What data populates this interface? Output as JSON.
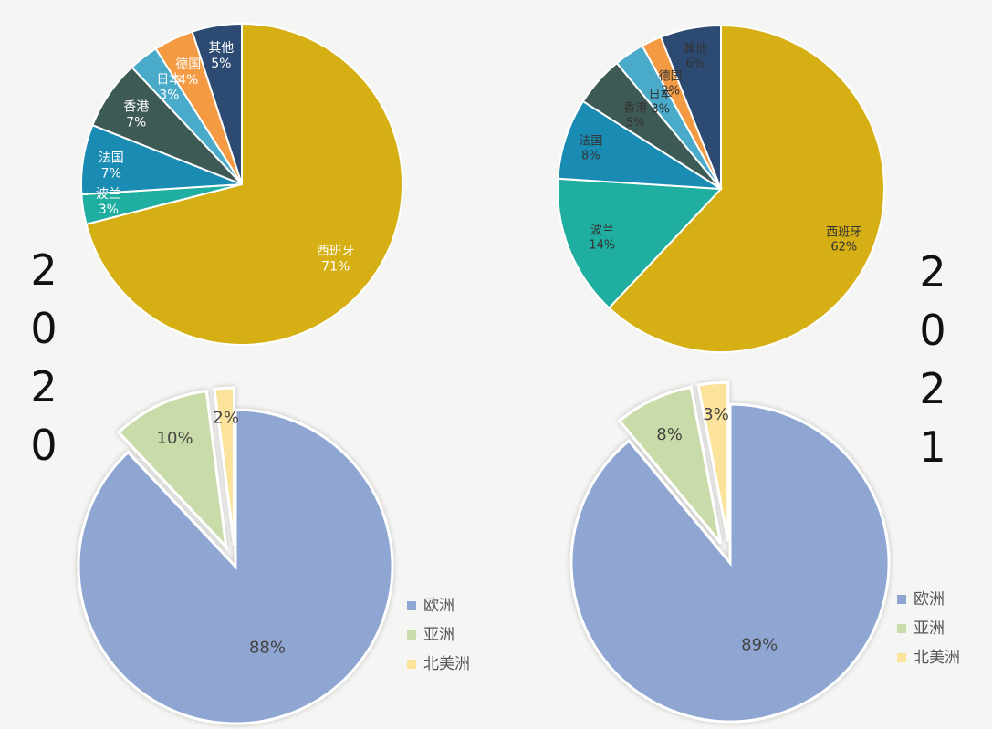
{
  "years": {
    "left": "2020",
    "right": "2021"
  },
  "chart_data": [
    {
      "id": "dest-2020",
      "type": "pie",
      "title": "",
      "labels": [
        "西班牙",
        "波兰",
        "法国",
        "香港",
        "日本",
        "德国",
        "其他"
      ],
      "values": [
        71,
        3,
        7,
        7,
        3,
        4,
        5
      ],
      "value_labels": [
        "71%",
        "3%",
        "7%",
        "7%",
        "3%",
        "4%",
        "5%"
      ],
      "colors": [
        "#D6AF14",
        "#1FAE9F",
        "#1A8CB4",
        "#3E5A55",
        "#49AACA",
        "#F39A43",
        "#2C4A72"
      ],
      "label_colors": [
        "#ffffff",
        "#ffffff",
        "#ffffff",
        "#ffffff",
        "#ffffff",
        "#ffffff",
        "#ffffff"
      ]
    },
    {
      "id": "dest-2021",
      "type": "pie",
      "title": "",
      "labels": [
        "西班牙",
        "波兰",
        "法国",
        "香港",
        "日本",
        "德国",
        "其他"
      ],
      "values": [
        62,
        14,
        8,
        5,
        3,
        2,
        6
      ],
      "value_labels": [
        "62%",
        "14%",
        "8%",
        "5%",
        "3%",
        "2%",
        "6%"
      ],
      "colors": [
        "#D6AF14",
        "#1FAE9F",
        "#1A8CB4",
        "#3E5A55",
        "#49AACA",
        "#F39A43",
        "#2C4A72"
      ],
      "label_colors": [
        "#333333",
        "#333333",
        "#333333",
        "#333333",
        "#333333",
        "#333333",
        "#333333"
      ]
    },
    {
      "id": "continent-2020",
      "type": "pie",
      "title": "",
      "labels": [
        "欧洲",
        "亚洲",
        "北美洲"
      ],
      "values": [
        88,
        10,
        2
      ],
      "value_labels": [
        "88%",
        "10%",
        "2%"
      ],
      "colors": [
        "#8EA6D1",
        "#C9DBA8",
        "#FCE39B"
      ],
      "exploded": [
        false,
        true,
        true
      ],
      "legend": [
        "欧洲",
        "亚洲",
        "北美洲"
      ],
      "legend_position": "bottom-right"
    },
    {
      "id": "continent-2021",
      "type": "pie",
      "title": "",
      "labels": [
        "欧洲",
        "亚洲",
        "北美洲"
      ],
      "values": [
        89,
        8,
        3
      ],
      "value_labels": [
        "89%",
        "8%",
        "3%"
      ],
      "colors": [
        "#8EA6D1",
        "#C9DBA8",
        "#FCE39B"
      ],
      "exploded": [
        false,
        true,
        true
      ],
      "legend": [
        "欧洲",
        "亚洲",
        "北美洲"
      ],
      "legend_position": "bottom-right"
    }
  ]
}
